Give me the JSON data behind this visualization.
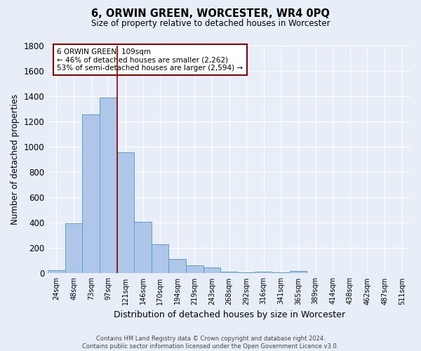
{
  "title": "6, ORWIN GREEN, WORCESTER, WR4 0PQ",
  "subtitle": "Size of property relative to detached houses in Worcester",
  "xlabel": "Distribution of detached houses by size in Worcester",
  "ylabel": "Number of detached properties",
  "footer_line1": "Contains HM Land Registry data © Crown copyright and database right 2024.",
  "footer_line2": "Contains public sector information licensed under the Open Government Licence v3.0.",
  "categories": [
    "24sqm",
    "48sqm",
    "73sqm",
    "97sqm",
    "121sqm",
    "146sqm",
    "170sqm",
    "194sqm",
    "219sqm",
    "243sqm",
    "268sqm",
    "292sqm",
    "316sqm",
    "341sqm",
    "365sqm",
    "389sqm",
    "414sqm",
    "438sqm",
    "462sqm",
    "487sqm",
    "511sqm"
  ],
  "values": [
    25,
    395,
    1255,
    1390,
    955,
    410,
    228,
    115,
    65,
    48,
    15,
    10,
    12,
    8,
    20,
    0,
    0,
    0,
    0,
    0,
    0
  ],
  "bar_color": "#aec6e8",
  "bar_edge_color": "#5b9bd5",
  "bg_color": "#e8eef8",
  "grid_color": "#ffffff",
  "vline_x": 3.5,
  "vline_color": "#8b0000",
  "annotation_box_color": "#8b0000",
  "annotation_box_fill": "#ffffff",
  "ylim": [
    0,
    1800
  ],
  "yticks": [
    0,
    200,
    400,
    600,
    800,
    1000,
    1200,
    1400,
    1600,
    1800
  ]
}
